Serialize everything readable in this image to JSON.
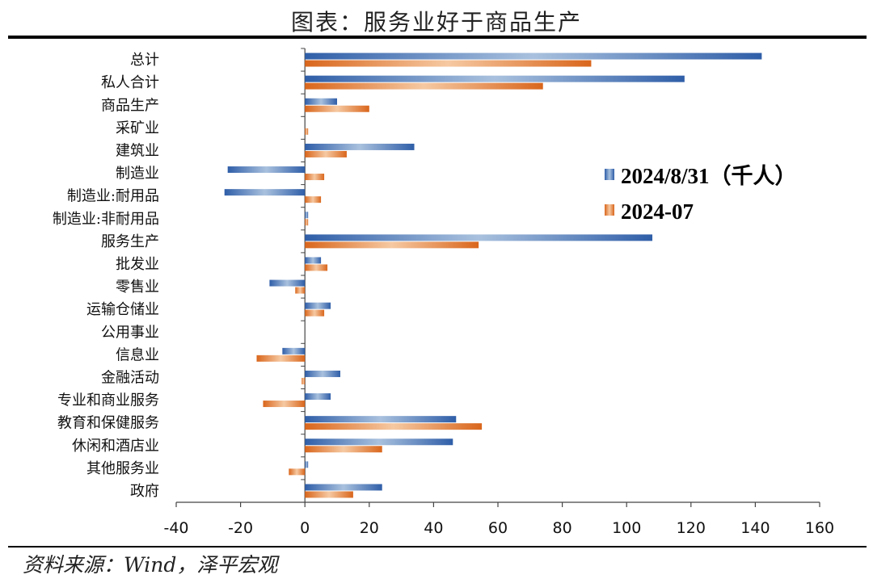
{
  "title": "图表：服务业好于商品生产",
  "source": "资料来源：Wind，泽平宏观",
  "colors": {
    "series1": "#4472c4",
    "series2": "#ed7d31",
    "axis": "#444444"
  },
  "chart_data": {
    "type": "bar",
    "orientation": "horizontal",
    "title": "图表：服务业好于商品生产",
    "categories": [
      "总计",
      "私人合计",
      "商品生产",
      "采矿业",
      "建筑业",
      "制造业",
      "制造业:耐用品",
      "制造业:非耐用品",
      "服务生产",
      "批发业",
      "零售业",
      "运输仓储业",
      "公用事业",
      "信息业",
      "金融活动",
      "专业和商业服务",
      "教育和保健服务",
      "休闲和酒店业",
      "其他服务业",
      "政府"
    ],
    "series": [
      {
        "name": "2024/8/31（千人）",
        "values": [
          142,
          118,
          10,
          0,
          34,
          -24,
          -25,
          1,
          108,
          5,
          -11,
          8,
          0,
          -7,
          11,
          8,
          47,
          46,
          1,
          24
        ]
      },
      {
        "name": "2024-07",
        "values": [
          89,
          74,
          20,
          1,
          13,
          6,
          5,
          1,
          54,
          7,
          -3,
          6,
          0,
          -15,
          -1,
          -13,
          55,
          24,
          -5,
          15
        ]
      }
    ],
    "xlim": [
      -40,
      160
    ],
    "xticks": [
      -40,
      -20,
      0,
      20,
      40,
      60,
      80,
      100,
      120,
      140,
      160
    ],
    "legend_position": "right-middle"
  }
}
